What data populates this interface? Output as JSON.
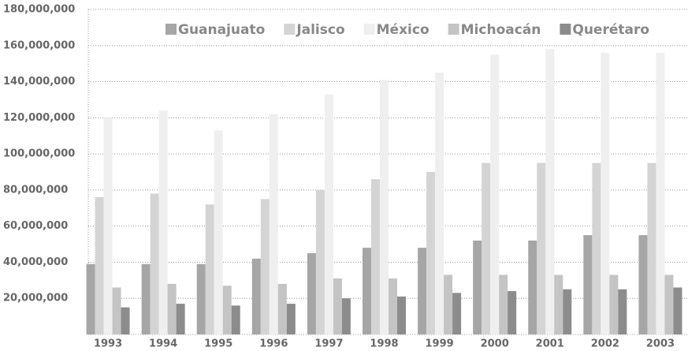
{
  "chart_data": {
    "type": "bar",
    "categories": [
      "1993",
      "1994",
      "1995",
      "1996",
      "1997",
      "1998",
      "1999",
      "2000",
      "2001",
      "2002",
      "2003"
    ],
    "series": [
      {
        "name": "Guanajuato",
        "color": "#a6a6a6",
        "values": [
          39000000,
          39000000,
          39000000,
          42000000,
          45000000,
          48000000,
          48000000,
          52000000,
          52000000,
          55000000,
          55000000
        ]
      },
      {
        "name": "Jalisco",
        "color": "#d4d4d4",
        "values": [
          76000000,
          78000000,
          72000000,
          75000000,
          80000000,
          86000000,
          90000000,
          95000000,
          95000000,
          95000000,
          95000000
        ]
      },
      {
        "name": "México",
        "color": "#efefef",
        "values": [
          120000000,
          124000000,
          113000000,
          122000000,
          133000000,
          141000000,
          145000000,
          155000000,
          158000000,
          156000000,
          156000000
        ]
      },
      {
        "name": "Michoacán",
        "color": "#c4c4c4",
        "values": [
          26000000,
          28000000,
          27000000,
          28000000,
          31000000,
          31000000,
          33000000,
          33000000,
          33000000,
          33000000,
          33000000
        ]
      },
      {
        "name": "Querétaro",
        "color": "#8c8c8c",
        "values": [
          15000000,
          17000000,
          16000000,
          17000000,
          20000000,
          21000000,
          23000000,
          24000000,
          25000000,
          25000000,
          26000000
        ]
      }
    ],
    "ylim": [
      0,
      180000000
    ],
    "yticks": [
      {
        "value": 20000000,
        "label": "20,000,000"
      },
      {
        "value": 40000000,
        "label": "40,000,000"
      },
      {
        "value": 60000000,
        "label": "60,000,000"
      },
      {
        "value": 80000000,
        "label": "80,000,000"
      },
      {
        "value": 100000000,
        "label": "100,000,000"
      },
      {
        "value": 120000000,
        "label": "120,000,000"
      },
      {
        "value": 140000000,
        "label": "140,000,000"
      },
      {
        "value": 160000000,
        "label": "160,000,000"
      },
      {
        "value": 180000000,
        "label": "180,000,000"
      }
    ],
    "grid": true,
    "legend": "top"
  }
}
